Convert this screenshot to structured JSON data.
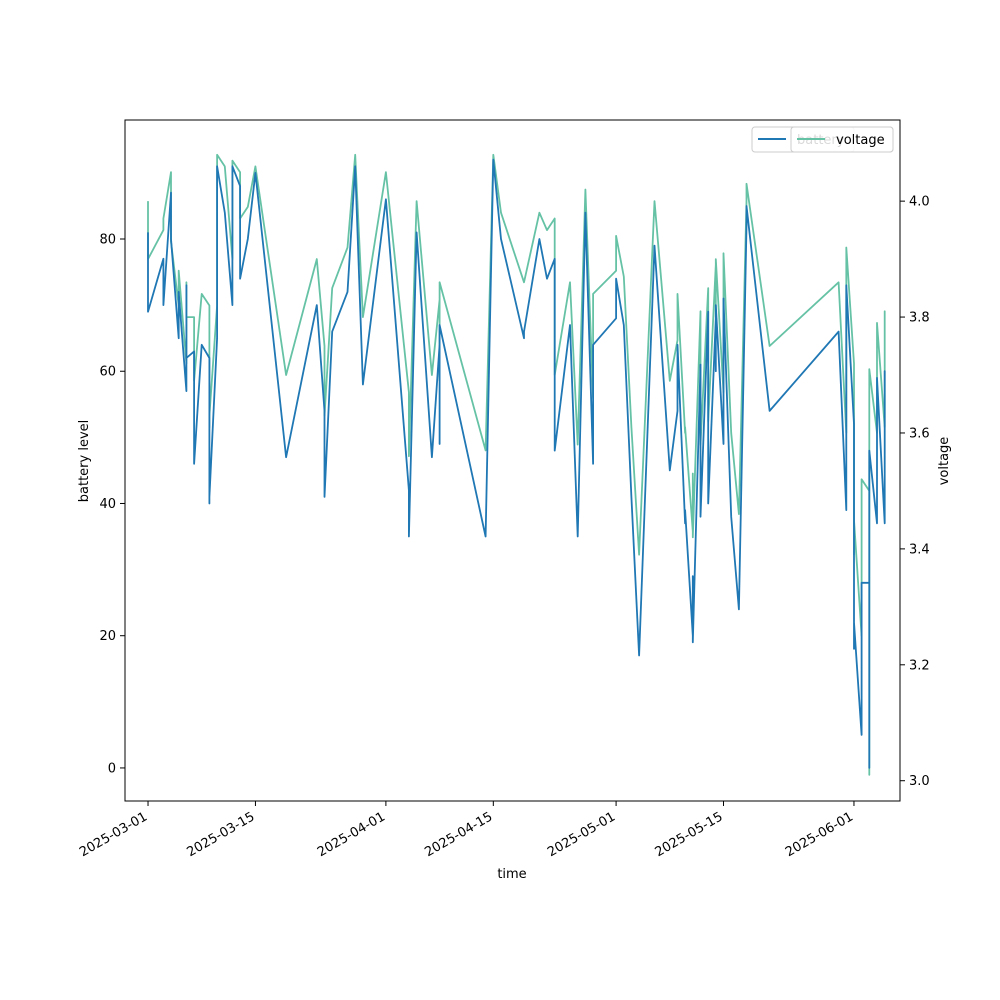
{
  "chart_data": {
    "type": "line",
    "xlabel": "time",
    "ylabel": "battery level",
    "y2label": "voltage",
    "x_ticks": [
      "2025-03-01",
      "2025-03-15",
      "2025-04-01",
      "2025-04-15",
      "2025-05-01",
      "2025-05-15",
      "2025-06-01"
    ],
    "y_ticks": [
      0,
      20,
      40,
      60,
      80
    ],
    "y2_ticks": [
      "3.0",
      "3.2",
      "3.4",
      "3.6",
      "3.8",
      "4.0"
    ],
    "xlim": [
      "2025-02-26",
      "2025-06-07"
    ],
    "ylim": [
      -5,
      98
    ],
    "y2lim": [
      2.965,
      4.14
    ],
    "grid": false,
    "legend_position": "top-right",
    "series": [
      {
        "name": "battery",
        "axis": "left",
        "color": "#1f77b4",
        "points": [
          [
            "2025-03-01",
            81
          ],
          [
            "2025-03-01",
            69
          ],
          [
            "2025-03-03",
            77
          ],
          [
            "2025-03-03",
            70
          ],
          [
            "2025-03-04",
            87
          ],
          [
            "2025-03-04",
            80
          ],
          [
            "2025-03-05",
            65
          ],
          [
            "2025-03-05",
            70
          ],
          [
            "2025-03-05",
            72
          ],
          [
            "2025-03-06",
            57
          ],
          [
            "2025-03-06",
            73
          ],
          [
            "2025-03-06",
            62
          ],
          [
            "2025-03-07",
            63
          ],
          [
            "2025-03-07",
            46
          ],
          [
            "2025-03-08",
            64
          ],
          [
            "2025-03-09",
            62
          ],
          [
            "2025-03-09",
            40
          ],
          [
            "2025-03-09",
            41
          ],
          [
            "2025-03-10",
            65
          ],
          [
            "2025-03-10",
            91
          ],
          [
            "2025-03-11",
            84
          ],
          [
            "2025-03-12",
            70
          ],
          [
            "2025-03-12",
            91
          ],
          [
            "2025-03-13",
            88
          ],
          [
            "2025-03-13",
            74
          ],
          [
            "2025-03-14",
            80
          ],
          [
            "2025-03-15",
            90
          ],
          [
            "2025-03-19",
            47
          ],
          [
            "2025-03-23",
            70
          ],
          [
            "2025-03-24",
            54
          ],
          [
            "2025-03-24",
            41
          ],
          [
            "2025-03-25",
            66
          ],
          [
            "2025-03-27",
            72
          ],
          [
            "2025-03-28",
            91
          ],
          [
            "2025-03-29",
            58
          ],
          [
            "2025-04-01",
            86
          ],
          [
            "2025-04-04",
            42
          ],
          [
            "2025-04-04",
            35
          ],
          [
            "2025-04-05",
            81
          ],
          [
            "2025-04-07",
            47
          ],
          [
            "2025-04-08",
            64
          ],
          [
            "2025-04-08",
            49
          ],
          [
            "2025-04-08",
            67
          ],
          [
            "2025-04-14",
            35
          ],
          [
            "2025-04-15",
            92
          ],
          [
            "2025-04-16",
            80
          ],
          [
            "2025-04-19",
            65
          ],
          [
            "2025-04-19",
            66
          ],
          [
            "2025-04-21",
            80
          ],
          [
            "2025-04-22",
            74
          ],
          [
            "2025-04-23",
            77
          ],
          [
            "2025-04-23",
            48
          ],
          [
            "2025-04-25",
            67
          ],
          [
            "2025-04-26",
            35
          ],
          [
            "2025-04-27",
            84
          ],
          [
            "2025-04-28",
            46
          ],
          [
            "2025-04-28",
            64
          ],
          [
            "2025-05-01",
            68
          ],
          [
            "2025-05-01",
            74
          ],
          [
            "2025-05-02",
            67
          ],
          [
            "2025-05-03",
            41
          ],
          [
            "2025-05-04",
            17
          ],
          [
            "2025-05-06",
            79
          ],
          [
            "2025-05-08",
            45
          ],
          [
            "2025-05-09",
            54
          ],
          [
            "2025-05-09",
            64
          ],
          [
            "2025-05-10",
            37
          ],
          [
            "2025-05-10",
            39
          ],
          [
            "2025-05-11",
            20
          ],
          [
            "2025-05-11",
            29
          ],
          [
            "2025-05-11",
            19
          ],
          [
            "2025-05-12",
            61
          ],
          [
            "2025-05-12",
            38
          ],
          [
            "2025-05-13",
            69
          ],
          [
            "2025-05-13",
            40
          ],
          [
            "2025-05-14",
            68
          ],
          [
            "2025-05-14",
            60
          ],
          [
            "2025-05-14",
            70
          ],
          [
            "2025-05-15",
            49
          ],
          [
            "2025-05-15",
            71
          ],
          [
            "2025-05-16",
            38
          ],
          [
            "2025-05-17",
            24
          ],
          [
            "2025-05-18",
            82
          ],
          [
            "2025-05-18",
            85
          ],
          [
            "2025-05-21",
            54
          ],
          [
            "2025-05-30",
            66
          ],
          [
            "2025-05-31",
            39
          ],
          [
            "2025-05-31",
            73
          ],
          [
            "2025-06-01",
            52
          ],
          [
            "2025-06-01",
            18
          ],
          [
            "2025-06-01",
            22
          ],
          [
            "2025-06-02",
            5
          ],
          [
            "2025-06-02",
            28
          ],
          [
            "2025-06-03",
            28
          ],
          [
            "2025-06-03",
            0
          ],
          [
            "2025-06-03",
            48
          ],
          [
            "2025-06-04",
            37
          ],
          [
            "2025-06-04",
            59
          ],
          [
            "2025-06-05",
            37
          ],
          [
            "2025-06-05",
            60
          ],
          [
            "2025-06-05",
            53
          ]
        ]
      },
      {
        "name": "voltage",
        "axis": "right",
        "color": "#66c2a5",
        "points": [
          [
            "2025-03-01",
            4.0
          ],
          [
            "2025-03-01",
            3.9
          ],
          [
            "2025-03-03",
            3.95
          ],
          [
            "2025-03-03",
            3.97
          ],
          [
            "2025-03-04",
            4.05
          ],
          [
            "2025-03-04",
            3.93
          ],
          [
            "2025-03-05",
            3.82
          ],
          [
            "2025-03-05",
            3.87
          ],
          [
            "2025-03-05",
            3.88
          ],
          [
            "2025-03-06",
            3.72
          ],
          [
            "2025-03-06",
            3.86
          ],
          [
            "2025-03-06",
            3.8
          ],
          [
            "2025-03-07",
            3.8
          ],
          [
            "2025-03-07",
            3.69
          ],
          [
            "2025-03-08",
            3.84
          ],
          [
            "2025-03-09",
            3.82
          ],
          [
            "2025-03-09",
            3.61
          ],
          [
            "2025-03-09",
            3.63
          ],
          [
            "2025-03-10",
            3.82
          ],
          [
            "2025-03-10",
            4.08
          ],
          [
            "2025-03-11",
            4.06
          ],
          [
            "2025-03-12",
            3.9
          ],
          [
            "2025-03-12",
            4.07
          ],
          [
            "2025-03-13",
            4.05
          ],
          [
            "2025-03-13",
            3.97
          ],
          [
            "2025-03-14",
            3.99
          ],
          [
            "2025-03-15",
            4.06
          ],
          [
            "2025-03-19",
            3.7
          ],
          [
            "2025-03-23",
            3.9
          ],
          [
            "2025-03-24",
            3.75
          ],
          [
            "2025-03-24",
            3.63
          ],
          [
            "2025-03-25",
            3.85
          ],
          [
            "2025-03-27",
            3.92
          ],
          [
            "2025-03-28",
            4.08
          ],
          [
            "2025-03-29",
            3.8
          ],
          [
            "2025-04-01",
            4.05
          ],
          [
            "2025-04-04",
            3.67
          ],
          [
            "2025-04-04",
            3.56
          ],
          [
            "2025-04-05",
            4.0
          ],
          [
            "2025-04-07",
            3.7
          ],
          [
            "2025-04-08",
            3.83
          ],
          [
            "2025-04-08",
            3.69
          ],
          [
            "2025-04-08",
            3.86
          ],
          [
            "2025-04-14",
            3.57
          ],
          [
            "2025-04-15",
            4.08
          ],
          [
            "2025-04-16",
            3.98
          ],
          [
            "2025-04-19",
            3.86
          ],
          [
            "2025-04-19",
            3.86
          ],
          [
            "2025-04-21",
            3.98
          ],
          [
            "2025-04-22",
            3.95
          ],
          [
            "2025-04-23",
            3.97
          ],
          [
            "2025-04-23",
            3.7
          ],
          [
            "2025-04-25",
            3.86
          ],
          [
            "2025-04-26",
            3.58
          ],
          [
            "2025-04-27",
            4.02
          ],
          [
            "2025-04-28",
            3.66
          ],
          [
            "2025-04-28",
            3.84
          ],
          [
            "2025-05-01",
            3.88
          ],
          [
            "2025-05-01",
            3.94
          ],
          [
            "2025-05-02",
            3.87
          ],
          [
            "2025-05-03",
            3.61
          ],
          [
            "2025-05-04",
            3.39
          ],
          [
            "2025-05-06",
            4.0
          ],
          [
            "2025-05-08",
            3.69
          ],
          [
            "2025-05-09",
            3.76
          ],
          [
            "2025-05-09",
            3.84
          ],
          [
            "2025-05-10",
            3.6
          ],
          [
            "2025-05-10",
            3.61
          ],
          [
            "2025-05-11",
            3.43
          ],
          [
            "2025-05-11",
            3.53
          ],
          [
            "2025-05-11",
            3.42
          ],
          [
            "2025-05-12",
            3.81
          ],
          [
            "2025-05-12",
            3.58
          ],
          [
            "2025-05-13",
            3.85
          ],
          [
            "2025-05-13",
            3.62
          ],
          [
            "2025-05-14",
            3.89
          ],
          [
            "2025-05-14",
            3.8
          ],
          [
            "2025-05-14",
            3.9
          ],
          [
            "2025-05-15",
            3.67
          ],
          [
            "2025-05-15",
            3.91
          ],
          [
            "2025-05-16",
            3.6
          ],
          [
            "2025-05-17",
            3.46
          ],
          [
            "2025-05-18",
            4.0
          ],
          [
            "2025-05-18",
            4.03
          ],
          [
            "2025-05-21",
            3.75
          ],
          [
            "2025-05-30",
            3.86
          ],
          [
            "2025-05-31",
            3.6
          ],
          [
            "2025-05-31",
            3.92
          ],
          [
            "2025-06-01",
            3.72
          ],
          [
            "2025-06-01",
            3.39
          ],
          [
            "2025-06-01",
            3.45
          ],
          [
            "2025-06-02",
            3.25
          ],
          [
            "2025-06-02",
            3.52
          ],
          [
            "2025-06-03",
            3.5
          ],
          [
            "2025-06-03",
            3.01
          ],
          [
            "2025-06-03",
            3.71
          ],
          [
            "2025-06-04",
            3.6
          ],
          [
            "2025-06-04",
            3.79
          ],
          [
            "2025-06-05",
            3.61
          ],
          [
            "2025-06-05",
            3.81
          ],
          [
            "2025-06-05",
            3.74
          ]
        ]
      }
    ]
  }
}
